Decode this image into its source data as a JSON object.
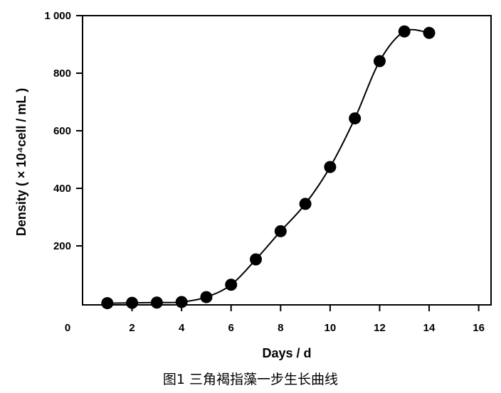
{
  "chart_data": {
    "type": "scatter",
    "title": "",
    "xlabel": "Days / d",
    "ylabel": "Density ( × 10⁴cell / mL )",
    "xlim": [
      0,
      16.5
    ],
    "ylim": [
      -5,
      1000
    ],
    "xticks": [
      2,
      4,
      6,
      8,
      10,
      12,
      14,
      16
    ],
    "xtick_labels": [
      "2",
      "4",
      "6",
      "8",
      "10",
      "12",
      "14",
      "16"
    ],
    "x_origin_label": "0",
    "yticks": [
      200,
      400,
      600,
      800,
      1000
    ],
    "ytick_labels": [
      "200",
      "400",
      "600",
      "800",
      "1 000"
    ],
    "grid": false,
    "legend": false,
    "fitted_curve": true,
    "series": [
      {
        "x": [
          1,
          2,
          3,
          4,
          5,
          6,
          7,
          8,
          9,
          10,
          11,
          12,
          13,
          14
        ],
        "y": [
          1,
          2,
          3,
          5,
          22,
          65,
          153,
          251,
          346,
          474,
          643,
          842,
          945,
          940
        ]
      }
    ]
  },
  "caption": "图1  三角褐指藻一步生长曲线"
}
